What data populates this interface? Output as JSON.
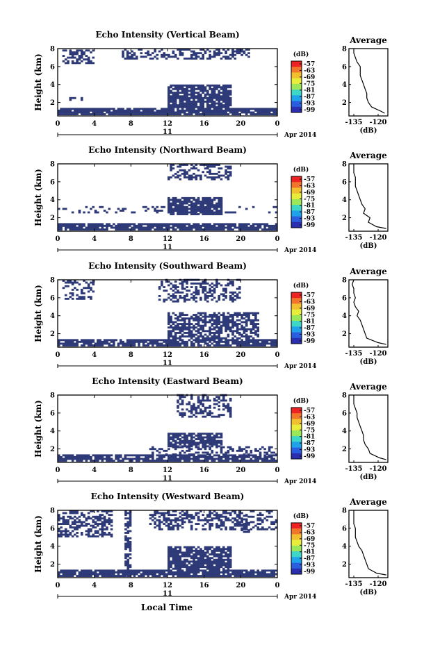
{
  "figure": {
    "xlabel": "Local Time",
    "date_label": "11",
    "month_label": "Apr 2014"
  },
  "colors": {
    "echo": "#2e3a78",
    "frame": "#000000"
  },
  "colorbar": {
    "unit": "(dB)",
    "ticks": [
      "-57",
      "-63",
      "-69",
      "-75",
      "-81",
      "-87",
      "-93",
      "-99"
    ],
    "colors": [
      "#ee2222",
      "#f2762a",
      "#f2c02e",
      "#e8ec3a",
      "#9ae85a",
      "#3ed6c6",
      "#1ea2ea",
      "#2a5ee0",
      "#2a2eb0"
    ]
  },
  "chart_data": [
    {
      "type": "heatmap",
      "title": "Echo Intensity (Vertical Beam)",
      "ylabel": "Height (km)",
      "x_ticks": [
        "0",
        "4",
        "8",
        "12",
        "16",
        "20",
        "0"
      ],
      "y_ticks": [
        "2",
        "4",
        "6",
        "8"
      ],
      "xlim": [
        0,
        24
      ],
      "ylim": [
        0.5,
        8
      ],
      "profile": {
        "title": "Average",
        "xlabel": "(dB)",
        "x_ticks": [
          "-135",
          "-120"
        ],
        "y_ticks": [
          "2",
          "4",
          "6",
          "8"
        ],
        "xlim": [
          -138,
          -114
        ],
        "ylim": [
          0.5,
          8
        ],
        "height": [
          0.8,
          1.0,
          1.5,
          2.0,
          2.5,
          3.0,
          3.5,
          4.0,
          4.5,
          5.0,
          5.5,
          6.0,
          6.5,
          7.0,
          7.5,
          8.0
        ],
        "value": [
          -116,
          -118,
          -124,
          -126,
          -127,
          -127,
          -128,
          -129,
          -130,
          -131,
          -131,
          -131,
          -133,
          -134,
          -135,
          -135
        ]
      }
    },
    {
      "type": "heatmap",
      "title": "Echo Intensity (Northward Beam)",
      "ylabel": "Height (km)",
      "x_ticks": [
        "0",
        "4",
        "8",
        "12",
        "16",
        "20",
        "0"
      ],
      "y_ticks": [
        "2",
        "4",
        "6",
        "8"
      ],
      "xlim": [
        0,
        24
      ],
      "ylim": [
        0.5,
        8
      ],
      "profile": {
        "title": "Average",
        "xlabel": "(dB)",
        "x_ticks": [
          "-135",
          "-120"
        ],
        "y_ticks": [
          "2",
          "4",
          "6",
          "8"
        ],
        "xlim": [
          -138,
          -114
        ],
        "ylim": [
          0.5,
          8
        ],
        "height": [
          0.8,
          1.0,
          1.5,
          2.0,
          2.5,
          3.0,
          3.5,
          4.0,
          4.5,
          5.0,
          5.5,
          6.0,
          6.5,
          7.0,
          7.5,
          8.0
        ],
        "value": [
          -115,
          -121,
          -126,
          -125,
          -129,
          -128,
          -130,
          -131,
          -132,
          -133,
          -134,
          -134,
          -134,
          -135,
          -135,
          -135
        ]
      }
    },
    {
      "type": "heatmap",
      "title": "Echo Intensity (Southward Beam)",
      "ylabel": "Height (km)",
      "x_ticks": [
        "0",
        "4",
        "8",
        "12",
        "16",
        "20",
        "0"
      ],
      "y_ticks": [
        "2",
        "4",
        "6",
        "8"
      ],
      "xlim": [
        0,
        24
      ],
      "ylim": [
        0.5,
        8
      ],
      "profile": {
        "title": "Average",
        "xlabel": "(dB)",
        "x_ticks": [
          "-135",
          "-120"
        ],
        "y_ticks": [
          "2",
          "4",
          "6",
          "8"
        ],
        "xlim": [
          -138,
          -114
        ],
        "ylim": [
          0.5,
          8
        ],
        "height": [
          0.8,
          1.0,
          1.5,
          2.0,
          2.5,
          3.0,
          3.5,
          4.0,
          4.5,
          5.0,
          5.5,
          6.0,
          6.5,
          7.0,
          7.5,
          8.0
        ],
        "value": [
          -115,
          -120,
          -127,
          -128,
          -129,
          -130,
          -131,
          -133,
          -132,
          -134,
          -135,
          -134,
          -135,
          -135,
          -136,
          -135
        ]
      }
    },
    {
      "type": "heatmap",
      "title": "Echo Intensity (Eastward Beam)",
      "ylabel": "Height (km)",
      "x_ticks": [
        "0",
        "4",
        "8",
        "12",
        "16",
        "20",
        "0"
      ],
      "y_ticks": [
        "2",
        "4",
        "6",
        "8"
      ],
      "xlim": [
        0,
        24
      ],
      "ylim": [
        0.5,
        8
      ],
      "profile": {
        "title": "Average",
        "xlabel": "(dB)",
        "x_ticks": [
          "-135",
          "-120"
        ],
        "y_ticks": [
          "2",
          "4",
          "6",
          "8"
        ],
        "xlim": [
          -138,
          -114
        ],
        "ylim": [
          0.5,
          8
        ],
        "height": [
          0.8,
          1.0,
          1.5,
          2.0,
          2.5,
          3.0,
          3.5,
          4.0,
          4.5,
          5.0,
          5.5,
          6.0,
          6.5,
          7.0,
          7.5,
          8.0
        ],
        "value": [
          -115,
          -119,
          -125,
          -126,
          -128,
          -129,
          -129,
          -130,
          -131,
          -132,
          -133,
          -133,
          -134,
          -135,
          -135,
          -135
        ]
      }
    },
    {
      "type": "heatmap",
      "title": "Echo Intensity (Westward Beam)",
      "ylabel": "Height (km)",
      "x_ticks": [
        "0",
        "4",
        "8",
        "12",
        "16",
        "20",
        "0"
      ],
      "y_ticks": [
        "2",
        "4",
        "6",
        "8"
      ],
      "xlim": [
        0,
        24
      ],
      "ylim": [
        0.5,
        8
      ],
      "profile": {
        "title": "Average",
        "xlabel": "(dB)",
        "x_ticks": [
          "-135",
          "-120"
        ],
        "y_ticks": [
          "2",
          "4",
          "6",
          "8"
        ],
        "xlim": [
          -138,
          -114
        ],
        "ylim": [
          0.5,
          8
        ],
        "height": [
          0.8,
          1.0,
          1.5,
          2.0,
          2.5,
          3.0,
          3.5,
          4.0,
          4.5,
          5.0,
          5.5,
          6.0,
          6.5,
          7.0,
          7.5,
          8.0
        ],
        "value": [
          -115,
          -121,
          -126,
          -127,
          -128,
          -129,
          -130,
          -132,
          -133,
          -134,
          -134,
          -134,
          -135,
          -135,
          -135,
          -135
        ]
      }
    }
  ]
}
